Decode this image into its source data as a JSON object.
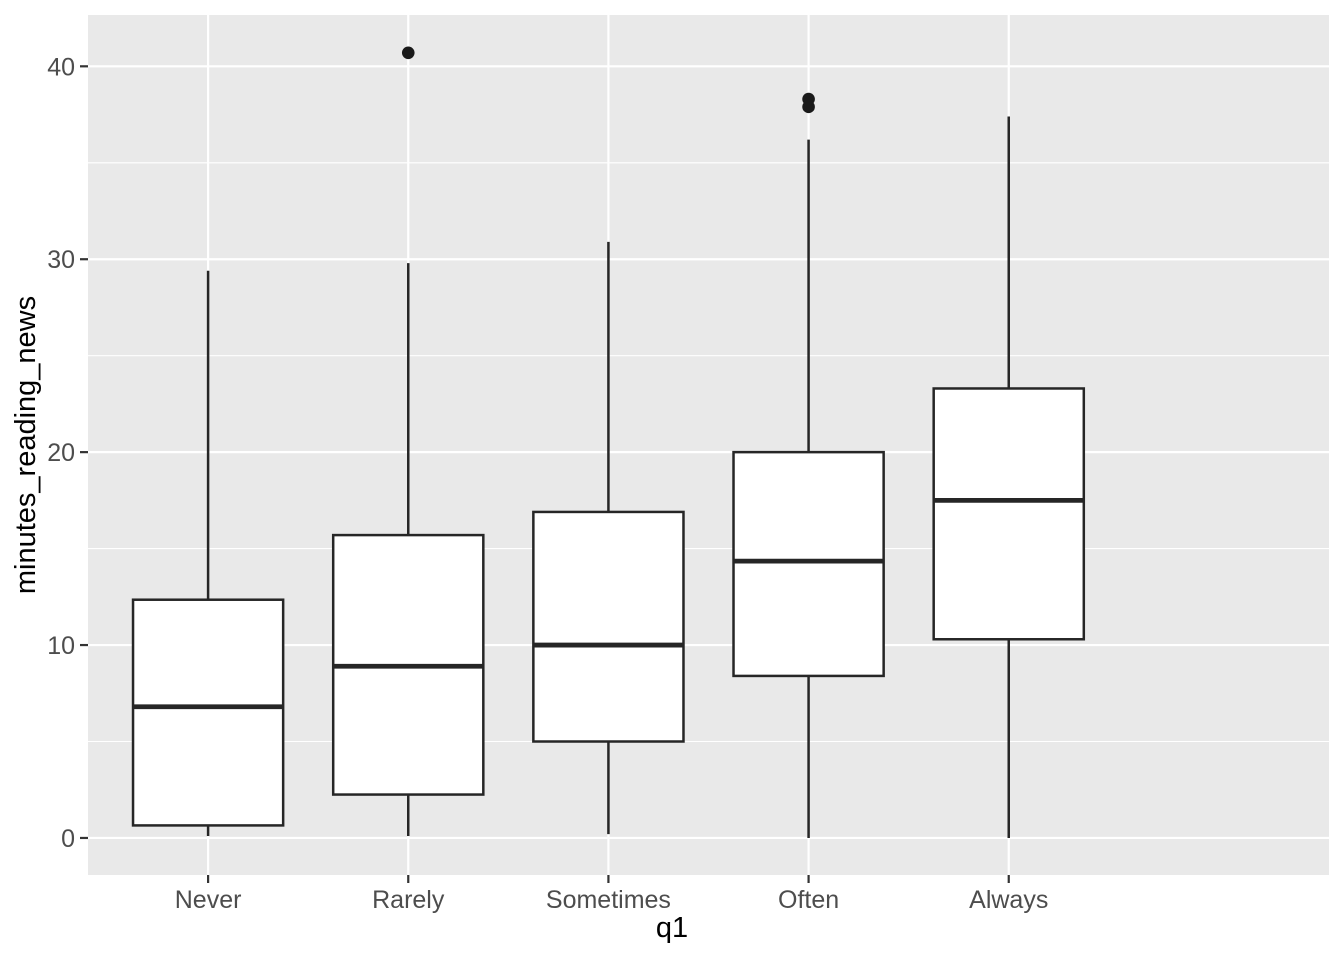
{
  "chart_data": {
    "type": "boxplot",
    "title": "",
    "xlabel": "q1",
    "ylabel": "minutes_reading_news",
    "categories": [
      "Never",
      "Rarely",
      "Sometimes",
      "Often",
      "Always"
    ],
    "y_ticks": [
      0,
      10,
      20,
      30,
      40
    ],
    "y_minor_ticks": [
      5,
      15,
      25,
      35
    ],
    "ylim": [
      -1.92,
      42.66
    ],
    "grid": "on",
    "legend_position": "none",
    "boxes": [
      {
        "category": "Never",
        "whisker_low": 0.1,
        "q1": 0.65,
        "median": 6.8,
        "q3": 12.35,
        "whisker_high": 29.4,
        "outliers": []
      },
      {
        "category": "Rarely",
        "whisker_low": 0.1,
        "q1": 2.25,
        "median": 8.9,
        "q3": 15.7,
        "whisker_high": 29.8,
        "outliers": [
          40.7
        ]
      },
      {
        "category": "Sometimes",
        "whisker_low": 0.2,
        "q1": 5.0,
        "median": 10.0,
        "q3": 16.9,
        "whisker_high": 30.9,
        "outliers": []
      },
      {
        "category": "Often",
        "whisker_low": 0.0,
        "q1": 8.4,
        "median": 14.35,
        "q3": 20.0,
        "whisker_high": 36.2,
        "outliers": [
          37.9,
          38.3
        ]
      },
      {
        "category": "Always",
        "whisker_low": 0.0,
        "q1": 10.3,
        "median": 17.5,
        "q3": 23.3,
        "whisker_high": 37.4,
        "outliers": []
      }
    ],
    "style": {
      "background": "#ffffff",
      "panel_bg": "#e9e9e9",
      "grid_color": "#ffffff",
      "box_stroke": "#262626",
      "box_fill": "#ffffff",
      "outlier_color": "#1a1a1a",
      "tick_mark_color": "#333333",
      "tick_label_color": "#4d4d4d",
      "axis_title_color": "#000000"
    }
  }
}
